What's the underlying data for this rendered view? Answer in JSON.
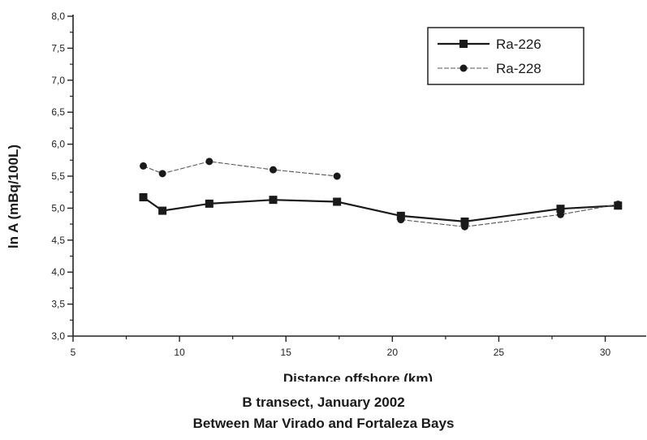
{
  "chart_data": {
    "type": "line",
    "xlabel": "Distance offshore (km)",
    "ylabel": "ln A (mBq/100L)",
    "caption_lines": [
      "B transect, January 2002",
      "Between Mar Virado and Fortaleza Bays"
    ],
    "xlim": [
      5,
      32
    ],
    "ylim": [
      3.0,
      8.0
    ],
    "x_ticks": [
      5,
      10,
      15,
      20,
      25,
      30
    ],
    "x_tick_labels": [
      "5",
      "10",
      "15",
      "20",
      "25",
      "30"
    ],
    "y_ticks": [
      3.0,
      3.5,
      4.0,
      4.5,
      5.0,
      5.5,
      6.0,
      6.5,
      7.0,
      7.5,
      8.0
    ],
    "y_tick_labels": [
      "3,0",
      "3,5",
      "4,0",
      "4,5",
      "5,0",
      "5,5",
      "6,0",
      "6,5",
      "7,0",
      "7,5",
      "8,0"
    ],
    "grid": false,
    "legend_position": "top-right",
    "series": [
      {
        "name": "Ra-226",
        "marker": "square",
        "line_style": "solid",
        "color": "#1a1a1a",
        "x": [
          8.3,
          9.2,
          11.4,
          14.4,
          17.4,
          20.4,
          23.4,
          27.9,
          30.6
        ],
        "y": [
          5.17,
          4.96,
          5.07,
          5.13,
          5.1,
          4.88,
          4.79,
          4.99,
          5.04
        ]
      },
      {
        "name": "Ra-228",
        "marker": "circle",
        "line_style": "thin",
        "color": "#1a1a1a",
        "x": [
          8.3,
          9.2,
          11.4,
          14.4,
          17.4,
          20.4,
          23.4,
          27.9,
          30.6
        ],
        "y": [
          5.66,
          5.54,
          5.73,
          5.6,
          5.5,
          4.82,
          4.71,
          4.9,
          5.06
        ],
        "connected_segments": [
          [
            0,
            4
          ],
          [
            5,
            8
          ]
        ]
      }
    ]
  }
}
